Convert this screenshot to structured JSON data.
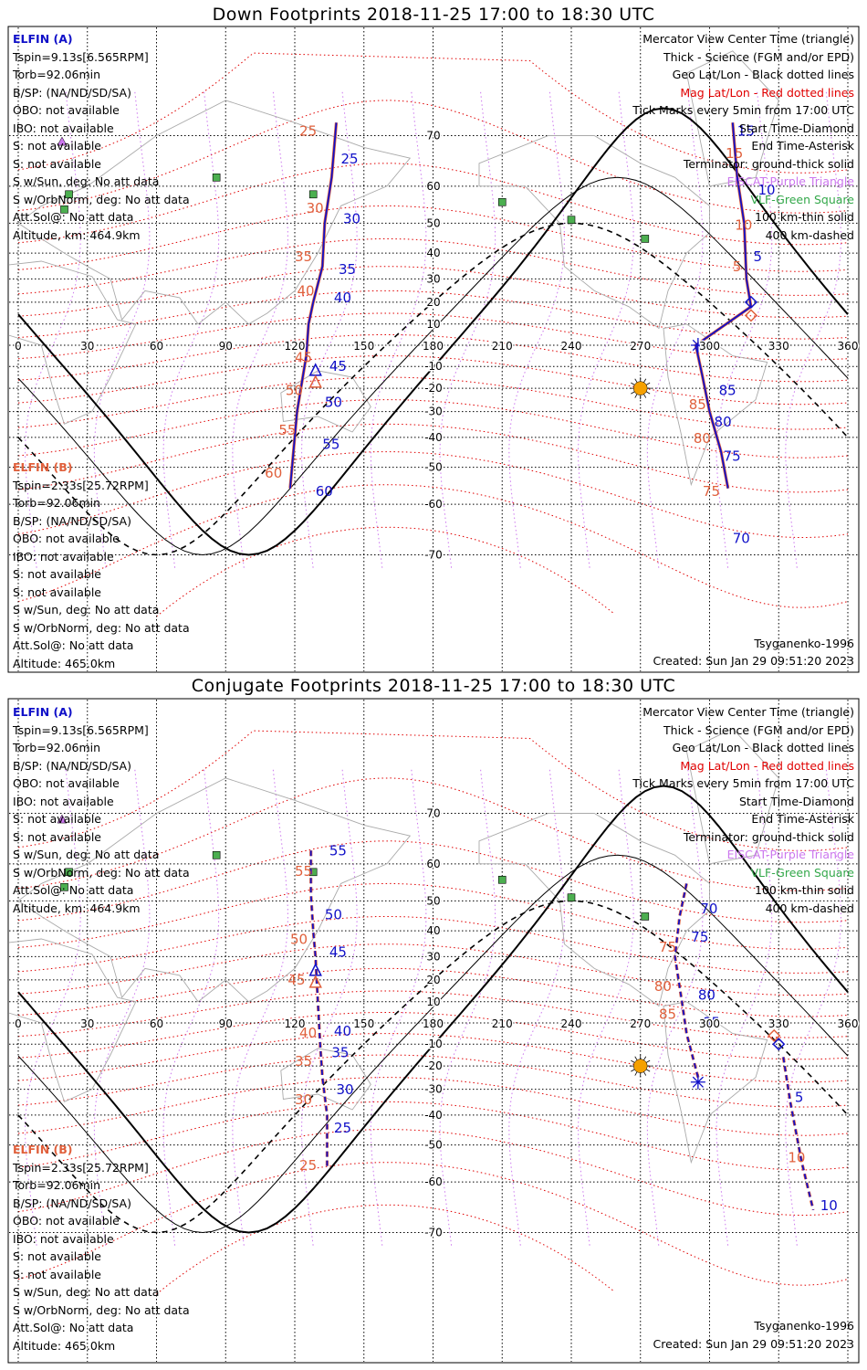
{
  "colors": {
    "elfin_a": "#1010c8",
    "elfin_b": "#e0603c",
    "geo_grid": "#000000",
    "mag_grid": "#e00000",
    "mag_meridian": "#cc77ee",
    "terminator": "#000000",
    "sun": "#f5a000",
    "vlf": "#4caf50",
    "coast": "#aaaaaa"
  },
  "panels": [
    {
      "title": "Down Footprints 2018-11-25 17:00 to 18:30 UTC",
      "mode": "down"
    },
    {
      "title": "Conjugate Footprints 2018-11-25 17:00 to 18:30 UTC",
      "mode": "conjugate"
    }
  ],
  "sat_a": {
    "name": "ELFIN (A)",
    "tspin": "Tspin=9.13s[6.565RPM]",
    "torb": "Torb=92.06min",
    "bsp": "B/SP: (NA/ND/SD/SA)",
    "obo": "OBO: not available",
    "ibo": "IBO: not available",
    "s1": "S: not available",
    "s2": "S: not available",
    "swsun": "S w/Sun, deg: No att data",
    "sworb": "S w/OrbNorm, deg: No att data",
    "attsol": "Att.Sol@: No att data",
    "alt": "Altitude, km: 464.9km"
  },
  "sat_b": {
    "name": "ELFIN (B)",
    "tspin": "Tspin=2.33s[25.72RPM]",
    "torb": "Torb=92.06min",
    "bsp": "B/SP: (NA/ND/SD/SA)",
    "obo": "OBO: not available",
    "ibo": "IBO: not available",
    "s1": "S: not available",
    "s2": "S: not available",
    "swsun": "S w/Sun, deg: No att data",
    "sworb": "S w/OrbNorm, deg: No att data",
    "attsol": "Att.Sol@: No att data",
    "alt": "Altitude: 465.0km"
  },
  "legend": {
    "l1": "Mercator View Center Time (triangle)",
    "l2": "Thick - Science (FGM and/or EPD)",
    "l3": "Geo Lat/Lon - Black dotted lines",
    "l4": "Mag Lat/Lon - Red dotted lines",
    "l5": "Tick Marks every 5min from 17:00 UTC",
    "l6": "Start Time-Diamond",
    "l7": "End Time-Asterisk",
    "l8": "Terminator: ground-thick solid",
    "l9": "EISCAT-Purple Triangle",
    "l10": "VLF-Green Square",
    "l11": "100 km-thin solid",
    "l12": "400 km-dashed"
  },
  "model": "Tsyganenko-1996",
  "created": "Created: Sun Jan 29 09:51:20 2023",
  "map": {
    "lon_ticks": [
      "0",
      "30",
      "60",
      "90",
      "120",
      "150",
      "180",
      "210",
      "240",
      "270",
      "300",
      "330",
      "360"
    ],
    "lat_ticks": [
      "70",
      "60",
      "50",
      "40",
      "30",
      "20",
      "10",
      "-10",
      "-20",
      "-30",
      "-40",
      "-50",
      "-60",
      "-70"
    ]
  },
  "tracks": {
    "down": {
      "a_track": [
        [
          118,
          -56
        ],
        [
          121,
          -30
        ],
        [
          125,
          -5
        ],
        [
          126,
          10
        ],
        [
          128,
          20
        ],
        [
          132,
          35
        ],
        [
          133,
          50
        ],
        [
          136,
          62
        ],
        [
          138,
          72
        ]
      ],
      "b_track": [
        [
          118,
          -56
        ],
        [
          121,
          -30
        ],
        [
          125,
          -5
        ],
        [
          126,
          10
        ],
        [
          128,
          20
        ],
        [
          132,
          35
        ],
        [
          133,
          50
        ],
        [
          136,
          62
        ],
        [
          138,
          72
        ]
      ],
      "a_track2": [
        [
          308,
          -56
        ],
        [
          305,
          -45
        ],
        [
          300,
          -30
        ],
        [
          297,
          -15
        ],
        [
          294,
          0
        ],
        [
          318,
          18
        ],
        [
          316,
          30
        ],
        [
          315,
          50
        ],
        [
          312,
          62
        ],
        [
          310,
          72
        ]
      ],
      "a_ticks": [
        [
          "25",
          140,
          65
        ],
        [
          "30",
          141,
          50
        ],
        [
          "35",
          139,
          32
        ],
        [
          "40",
          137,
          20
        ],
        [
          "45",
          135,
          -12
        ],
        [
          "50",
          133,
          -28
        ],
        [
          "55",
          132,
          -44
        ],
        [
          "60",
          129,
          -58
        ],
        [
          "5",
          319,
          37
        ],
        [
          "10",
          321,
          58
        ],
        [
          "15",
          312,
          70
        ],
        [
          "70",
          310,
          -68
        ],
        [
          "75",
          306,
          -48
        ],
        [
          "80",
          302,
          -36
        ],
        [
          "85",
          304,
          -23
        ]
      ],
      "b_ticks": [
        [
          "25",
          122,
          70
        ],
        [
          "30",
          125,
          53
        ],
        [
          "35",
          120,
          37
        ],
        [
          "40",
          121,
          23
        ],
        [
          "45",
          120,
          -8
        ],
        [
          "50",
          116,
          -23
        ],
        [
          "55",
          113,
          -39
        ],
        [
          "60",
          107,
          -53
        ],
        [
          "5",
          310,
          33
        ],
        [
          "10",
          311,
          48
        ],
        [
          "15",
          307,
          66
        ],
        [
          "75",
          297,
          -58
        ],
        [
          "80",
          293,
          -42
        ],
        [
          "85",
          291,
          -29
        ]
      ],
      "triangle": [
        129,
        -12
      ],
      "diamond_a": [
        318,
        20
      ],
      "diamond_b": [
        318,
        14
      ],
      "asterisk": [
        295,
        0
      ]
    },
    "conjugate": {
      "a_track": [
        [
          127,
          63
        ],
        [
          127,
          52
        ],
        [
          128,
          40
        ],
        [
          129,
          30
        ],
        [
          130,
          10
        ],
        [
          131,
          -10
        ],
        [
          132,
          -25
        ],
        [
          134,
          -40
        ],
        [
          134,
          -56
        ]
      ],
      "b_track": [
        [
          127,
          63
        ],
        [
          127,
          52
        ],
        [
          128,
          40
        ],
        [
          129,
          30
        ],
        [
          130,
          10
        ],
        [
          131,
          -10
        ],
        [
          132,
          -25
        ],
        [
          134,
          -40
        ],
        [
          134,
          -56
        ]
      ],
      "a_track2": [
        [
          295,
          -25
        ],
        [
          290,
          -5
        ],
        [
          288,
          10
        ],
        [
          285,
          30
        ],
        [
          287,
          45
        ],
        [
          290,
          55
        ]
      ],
      "a_track3": [
        [
          332,
          -16
        ],
        [
          335,
          -35
        ],
        [
          340,
          -55
        ],
        [
          345,
          -66
        ]
      ],
      "a_ticks": [
        [
          "55",
          135,
          62
        ],
        [
          "50",
          133,
          44
        ],
        [
          "45",
          135,
          30
        ],
        [
          "40",
          137,
          -6
        ],
        [
          "35",
          136,
          -16
        ],
        [
          "30",
          138,
          -32
        ],
        [
          "25",
          137,
          -46
        ],
        [
          "70",
          296,
          46
        ],
        [
          "75",
          292,
          36
        ],
        [
          "80",
          295,
          11
        ],
        [
          "85",
          297,
          -2
        ],
        [
          "5",
          337,
          -35
        ],
        [
          "10",
          348,
          -66
        ]
      ],
      "b_ticks": [
        [
          "55",
          120,
          57
        ],
        [
          "50",
          118,
          35
        ],
        [
          "45",
          117,
          18
        ],
        [
          "40",
          122,
          -7
        ],
        [
          "35",
          120,
          -20
        ],
        [
          "30",
          120,
          -36
        ],
        [
          "25",
          122,
          -57
        ],
        [
          "75",
          278,
          32
        ],
        [
          "80",
          276,
          15
        ],
        [
          "85",
          278,
          2
        ],
        [
          "10",
          334,
          -55
        ]
      ],
      "triangle": [
        129,
        24
      ],
      "diamond_a": [
        330,
        -10
      ],
      "diamond_b": [
        328,
        -6
      ],
      "asterisk": [
        295,
        -27
      ]
    }
  }
}
